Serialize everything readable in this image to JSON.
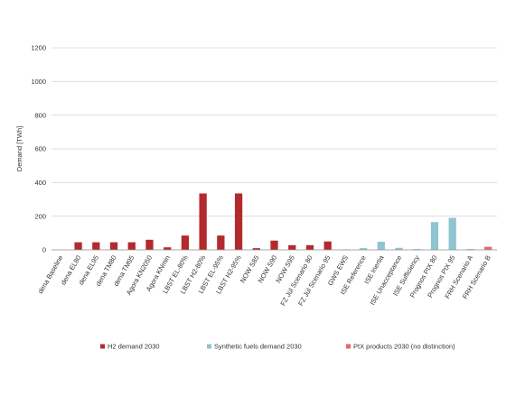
{
  "chart_data": {
    "type": "bar",
    "title": "",
    "xlabel": "",
    "ylabel": "Demand [TWh]",
    "ylim": [
      0,
      1200
    ],
    "yticks": [
      0,
      200,
      400,
      600,
      800,
      1000,
      1200
    ],
    "grid": true,
    "legend_position": "bottom",
    "categories": [
      "dena Baseline",
      "dena EL80",
      "dena EL95",
      "dena TM80",
      "dena TM95",
      "Agora KN2050",
      "Agora KNmin",
      "LBST EL-80%",
      "LBST H2-80%",
      "LBST EL-95%",
      "LBST H2-95%",
      "NOW S85",
      "NOW S90",
      "NOW S95",
      "FZ Jül Scenario 80",
      "FZ Jül Scenario 95",
      "GWS EWS",
      "ISE Reference",
      "ISE Inertia",
      "ISE Unacceptance",
      "ISE Sufficiency",
      "Prognos PtX 80",
      "Prognos PtX 95",
      "FRH Scenario A",
      "FRH Scenario B"
    ],
    "series": [
      {
        "name": "H2 demand 2030",
        "color": "#b22a2e",
        "values": [
          0,
          45,
          45,
          45,
          45,
          60,
          15,
          85,
          335,
          85,
          335,
          10,
          55,
          28,
          28,
          50,
          0,
          0,
          0,
          0,
          0,
          0,
          0,
          0,
          0
        ]
      },
      {
        "name": "Synthetic fuels demand 2030",
        "color": "#8ec5d0",
        "values": [
          0,
          0,
          0,
          0,
          0,
          0,
          0,
          0,
          0,
          0,
          0,
          0,
          0,
          0,
          0,
          0,
          2,
          10,
          48,
          12,
          5,
          165,
          190,
          0,
          0
        ]
      },
      {
        "name": "PtX products 2030 (no distinction)",
        "color": "#e06a6a",
        "values": [
          0,
          0,
          0,
          0,
          0,
          0,
          0,
          0,
          0,
          0,
          0,
          0,
          0,
          0,
          0,
          0,
          0,
          0,
          0,
          0,
          0,
          0,
          0,
          4,
          18
        ]
      }
    ]
  }
}
